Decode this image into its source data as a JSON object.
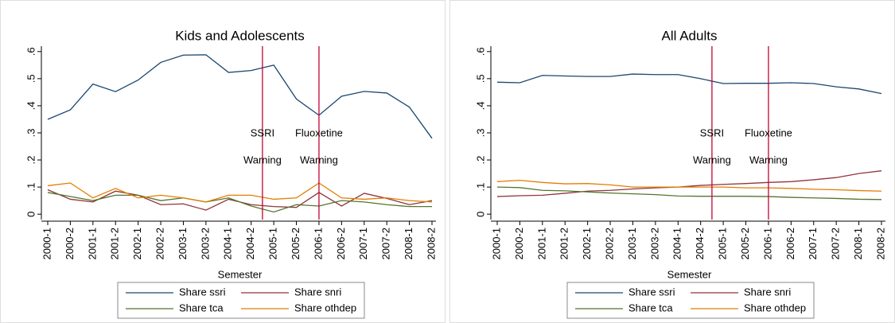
{
  "chart_data": [
    {
      "type": "line",
      "title": "Kids and Adolescents",
      "x_label": "Semester",
      "categories": [
        "2000-1",
        "2000-2",
        "2001-1",
        "2001-2",
        "2002-1",
        "2002-2",
        "2003-1",
        "2003-2",
        "2004-1",
        "2004-2",
        "2005-1",
        "2005-2",
        "2006-1",
        "2006-2",
        "2007-1",
        "2007-2",
        "2008-1",
        "2008-2"
      ],
      "ylim": [
        -0.02,
        0.62
      ],
      "yticks": [
        {
          "value": 0,
          "label": "0"
        },
        {
          "value": 0.1,
          "label": ".1"
        },
        {
          "value": 0.2,
          "label": ".2"
        },
        {
          "value": 0.3,
          "label": ".3"
        },
        {
          "value": 0.4,
          "label": ".4"
        },
        {
          "value": 0.5,
          "label": ".5"
        },
        {
          "value": 0.6,
          "label": ".6"
        }
      ],
      "series": [
        {
          "name": "Share ssri",
          "color": "#1a476f",
          "values": [
            0.35,
            0.385,
            0.48,
            0.452,
            0.495,
            0.56,
            0.587,
            0.588,
            0.523,
            0.53,
            0.55,
            0.425,
            0.365,
            0.435,
            0.453,
            0.447,
            0.395,
            0.28
          ]
        },
        {
          "name": "Share snri",
          "color": "#90353b",
          "values": [
            0.09,
            0.055,
            0.045,
            0.085,
            0.07,
            0.035,
            0.038,
            0.015,
            0.055,
            0.035,
            0.028,
            0.025,
            0.08,
            0.03,
            0.077,
            0.058,
            0.035,
            0.05
          ]
        },
        {
          "name": "Share tca",
          "color": "#55752f",
          "values": [
            0.08,
            0.065,
            0.05,
            0.07,
            0.07,
            0.05,
            0.06,
            0.045,
            0.06,
            0.03,
            0.008,
            0.035,
            0.03,
            0.05,
            0.045,
            0.035,
            0.028,
            0.028
          ]
        },
        {
          "name": "Share othdep",
          "color": "#e37e00",
          "values": [
            0.105,
            0.115,
            0.06,
            0.095,
            0.06,
            0.07,
            0.06,
            0.045,
            0.07,
            0.07,
            0.055,
            0.06,
            0.115,
            0.06,
            0.055,
            0.06,
            0.05,
            0.045
          ]
        }
      ],
      "annotations": [
        {
          "x": 9.5,
          "lines": [
            "SSRI",
            "Warning"
          ],
          "color": "#c10534"
        },
        {
          "x": 12,
          "lines": [
            "Fluoxetine",
            "Warning"
          ],
          "color": "#c10534"
        }
      ]
    },
    {
      "type": "line",
      "title": "All Adults",
      "x_label": "Semester",
      "categories": [
        "2000-1",
        "2000-2",
        "2001-1",
        "2001-2",
        "2002-1",
        "2002-2",
        "2003-1",
        "2003-2",
        "2004-1",
        "2004-2",
        "2005-1",
        "2005-2",
        "2006-1",
        "2006-2",
        "2007-1",
        "2007-2",
        "2008-1",
        "2008-2"
      ],
      "ylim": [
        -0.02,
        0.62
      ],
      "yticks": [
        {
          "value": 0,
          "label": "0"
        },
        {
          "value": 0.1,
          "label": ".1"
        },
        {
          "value": 0.2,
          "label": ".2"
        },
        {
          "value": 0.3,
          "label": ".3"
        },
        {
          "value": 0.4,
          "label": ".4"
        },
        {
          "value": 0.5,
          "label": ".5"
        },
        {
          "value": 0.6,
          "label": ".6"
        }
      ],
      "series": [
        {
          "name": "Share ssri",
          "color": "#1a476f",
          "values": [
            0.487,
            0.485,
            0.512,
            0.51,
            0.508,
            0.508,
            0.517,
            0.515,
            0.515,
            0.5,
            0.482,
            0.483,
            0.483,
            0.485,
            0.482,
            0.47,
            0.462,
            0.445
          ]
        },
        {
          "name": "Share snri",
          "color": "#90353b",
          "values": [
            0.065,
            0.068,
            0.07,
            0.077,
            0.085,
            0.088,
            0.093,
            0.097,
            0.1,
            0.106,
            0.11,
            0.113,
            0.117,
            0.12,
            0.127,
            0.135,
            0.15,
            0.16
          ]
        },
        {
          "name": "Share tca",
          "color": "#55752f",
          "values": [
            0.1,
            0.098,
            0.088,
            0.086,
            0.082,
            0.078,
            0.075,
            0.072,
            0.067,
            0.066,
            0.066,
            0.066,
            0.065,
            0.062,
            0.06,
            0.058,
            0.055,
            0.054
          ]
        },
        {
          "name": "Share othdep",
          "color": "#e37e00",
          "values": [
            0.12,
            0.125,
            0.117,
            0.112,
            0.113,
            0.108,
            0.1,
            0.1,
            0.1,
            0.1,
            0.1,
            0.097,
            0.097,
            0.095,
            0.092,
            0.09,
            0.087,
            0.085
          ]
        }
      ],
      "annotations": [
        {
          "x": 9.5,
          "lines": [
            "SSRI",
            "Warning"
          ],
          "color": "#c10534"
        },
        {
          "x": 12,
          "lines": [
            "Fluoxetine",
            "Warning"
          ],
          "color": "#c10534"
        }
      ]
    }
  ]
}
